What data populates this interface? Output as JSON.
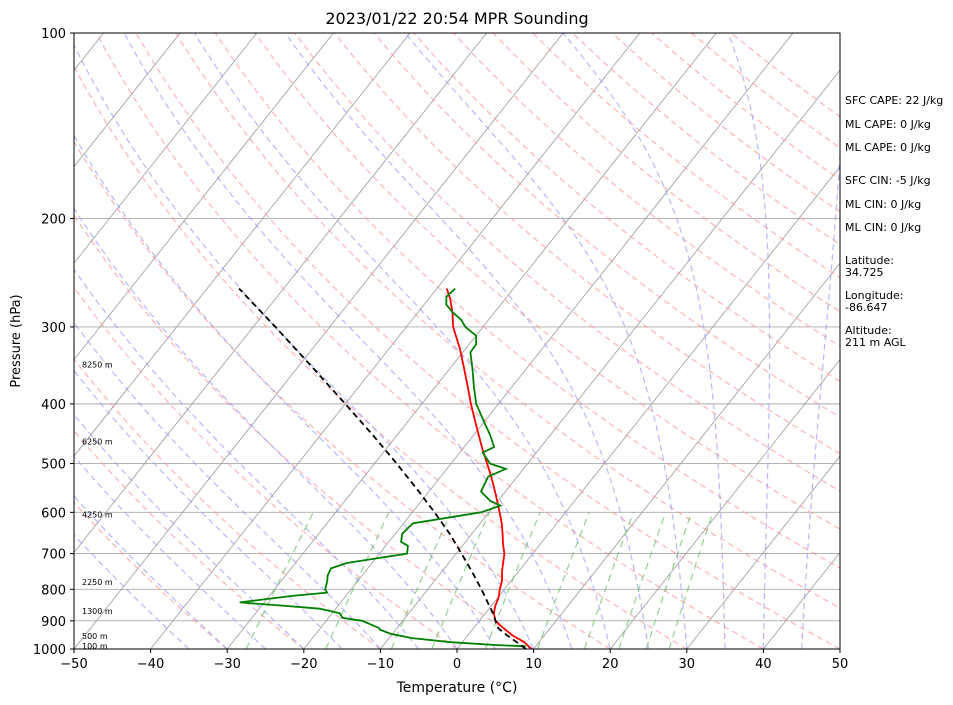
{
  "chart_data": {
    "type": "line",
    "title": "2023/01/22 20:54 MPR Sounding",
    "xlabel": "Temperature (°C)",
    "ylabel": "Pressure (hPa)",
    "xlim": [
      -50,
      50
    ],
    "ylim": [
      1000,
      100
    ],
    "y_scale": "log",
    "skew": true,
    "x_ticks": [
      -50,
      -40,
      -30,
      -20,
      -10,
      0,
      10,
      20,
      30,
      40,
      50
    ],
    "y_ticks": [
      100,
      200,
      300,
      400,
      500,
      600,
      700,
      800,
      900,
      1000
    ],
    "grid": true,
    "height_labels": [
      {
        "p": 345,
        "text": "8250 m"
      },
      {
        "p": 460,
        "text": "6250 m"
      },
      {
        "p": 605,
        "text": "4250 m"
      },
      {
        "p": 778,
        "text": "2250 m"
      },
      {
        "p": 868,
        "text": "1300 m"
      },
      {
        "p": 953,
        "text": "500 m"
      },
      {
        "p": 988,
        "text": "100 m"
      }
    ],
    "series": [
      {
        "role": "temperature",
        "color": "#ff0000",
        "style": "solid",
        "points": [
          [
            1000,
            9.7
          ],
          [
            975,
            8.1
          ],
          [
            950,
            5.8
          ],
          [
            925,
            3.9
          ],
          [
            900,
            2.1
          ],
          [
            875,
            1.1
          ],
          [
            850,
            0.5
          ],
          [
            825,
            0.1
          ],
          [
            800,
            -0.6
          ],
          [
            775,
            -1.2
          ],
          [
            750,
            -2.1
          ],
          [
            725,
            -2.9
          ],
          [
            700,
            -3.7
          ],
          [
            675,
            -4.9
          ],
          [
            650,
            -6.0
          ],
          [
            625,
            -7.2
          ],
          [
            600,
            -8.6
          ],
          [
            575,
            -10.1
          ],
          [
            550,
            -11.7
          ],
          [
            525,
            -13.4
          ],
          [
            500,
            -15.3
          ],
          [
            475,
            -17.3
          ],
          [
            450,
            -19.3
          ],
          [
            425,
            -21.4
          ],
          [
            400,
            -23.6
          ],
          [
            375,
            -25.8
          ],
          [
            350,
            -28.2
          ],
          [
            325,
            -30.8
          ],
          [
            300,
            -33.9
          ],
          [
            285,
            -35.4
          ],
          [
            270,
            -37.2
          ],
          [
            260,
            -38.7
          ]
        ]
      },
      {
        "role": "dewpoint",
        "color": "#008000",
        "style": "solid",
        "points": [
          [
            990,
            8.7
          ],
          [
            985,
            4.5
          ],
          [
            975,
            -1.5
          ],
          [
            960,
            -7.0
          ],
          [
            945,
            -10.2
          ],
          [
            930,
            -12.1
          ],
          [
            925,
            -12.3
          ],
          [
            900,
            -15.3
          ],
          [
            890,
            -18.2
          ],
          [
            875,
            -19.0
          ],
          [
            860,
            -22.1
          ],
          [
            850,
            -27.5
          ],
          [
            840,
            -33.2
          ],
          [
            820,
            -27.0
          ],
          [
            810,
            -22.8
          ],
          [
            800,
            -23.4
          ],
          [
            775,
            -24.0
          ],
          [
            760,
            -24.5
          ],
          [
            740,
            -24.8
          ],
          [
            725,
            -23.3
          ],
          [
            700,
            -16.4
          ],
          [
            680,
            -17.1
          ],
          [
            670,
            -18.4
          ],
          [
            650,
            -19.1
          ],
          [
            625,
            -18.8
          ],
          [
            610,
            -14.2
          ],
          [
            600,
            -11.0
          ],
          [
            585,
            -9.2
          ],
          [
            575,
            -11.0
          ],
          [
            555,
            -13.2
          ],
          [
            525,
            -13.8
          ],
          [
            510,
            -12.3
          ],
          [
            500,
            -14.9
          ],
          [
            480,
            -17.0
          ],
          [
            470,
            -16.1
          ],
          [
            450,
            -17.8
          ],
          [
            425,
            -20.3
          ],
          [
            400,
            -22.9
          ],
          [
            375,
            -25.0
          ],
          [
            350,
            -27.1
          ],
          [
            330,
            -29.0
          ],
          [
            320,
            -29.1
          ],
          [
            310,
            -30.0
          ],
          [
            300,
            -32.3
          ],
          [
            292,
            -33.6
          ],
          [
            284,
            -35.5
          ],
          [
            276,
            -37.1
          ],
          [
            268,
            -37.9
          ],
          [
            260,
            -37.6
          ]
        ]
      },
      {
        "role": "parcel",
        "color": "#000000",
        "style": "dashed",
        "points": [
          [
            1000,
            9.0
          ],
          [
            975,
            7.1
          ],
          [
            950,
            5.1
          ],
          [
            925,
            3.2
          ],
          [
            900,
            2.1
          ],
          [
            875,
            1.0
          ],
          [
            850,
            -0.3
          ],
          [
            800,
            -3.0
          ],
          [
            750,
            -6.0
          ],
          [
            700,
            -9.3
          ],
          [
            650,
            -12.9
          ],
          [
            600,
            -17.1
          ],
          [
            550,
            -21.8
          ],
          [
            500,
            -27.1
          ],
          [
            450,
            -33.1
          ],
          [
            400,
            -40.0
          ],
          [
            350,
            -47.9
          ],
          [
            300,
            -57.1
          ],
          [
            260,
            -65.8
          ]
        ]
      }
    ]
  },
  "indices": [
    "SFC CAPE: 22 J/kg",
    "ML CAPE: 0 J/kg",
    "ML CAPE: 0 J/kg",
    "SFC CIN: -5 J/kg",
    "ML CIN: 0 J/kg",
    "ML CIN: 0 J/kg"
  ],
  "station": {
    "latitude_label": "Latitude:",
    "latitude_value": "34.725",
    "longitude_label": "Longitude:",
    "longitude_value": "-86.647",
    "altitude_label": "Altitude:",
    "altitude_value": "211 m AGL"
  },
  "colors": {
    "dry_adiabat": "#ff9999",
    "moist_adiabat": "#9999ff",
    "mixing_ratio": "#66bb66",
    "isotherm": "#999999",
    "isobar": "#aaaaaa"
  }
}
